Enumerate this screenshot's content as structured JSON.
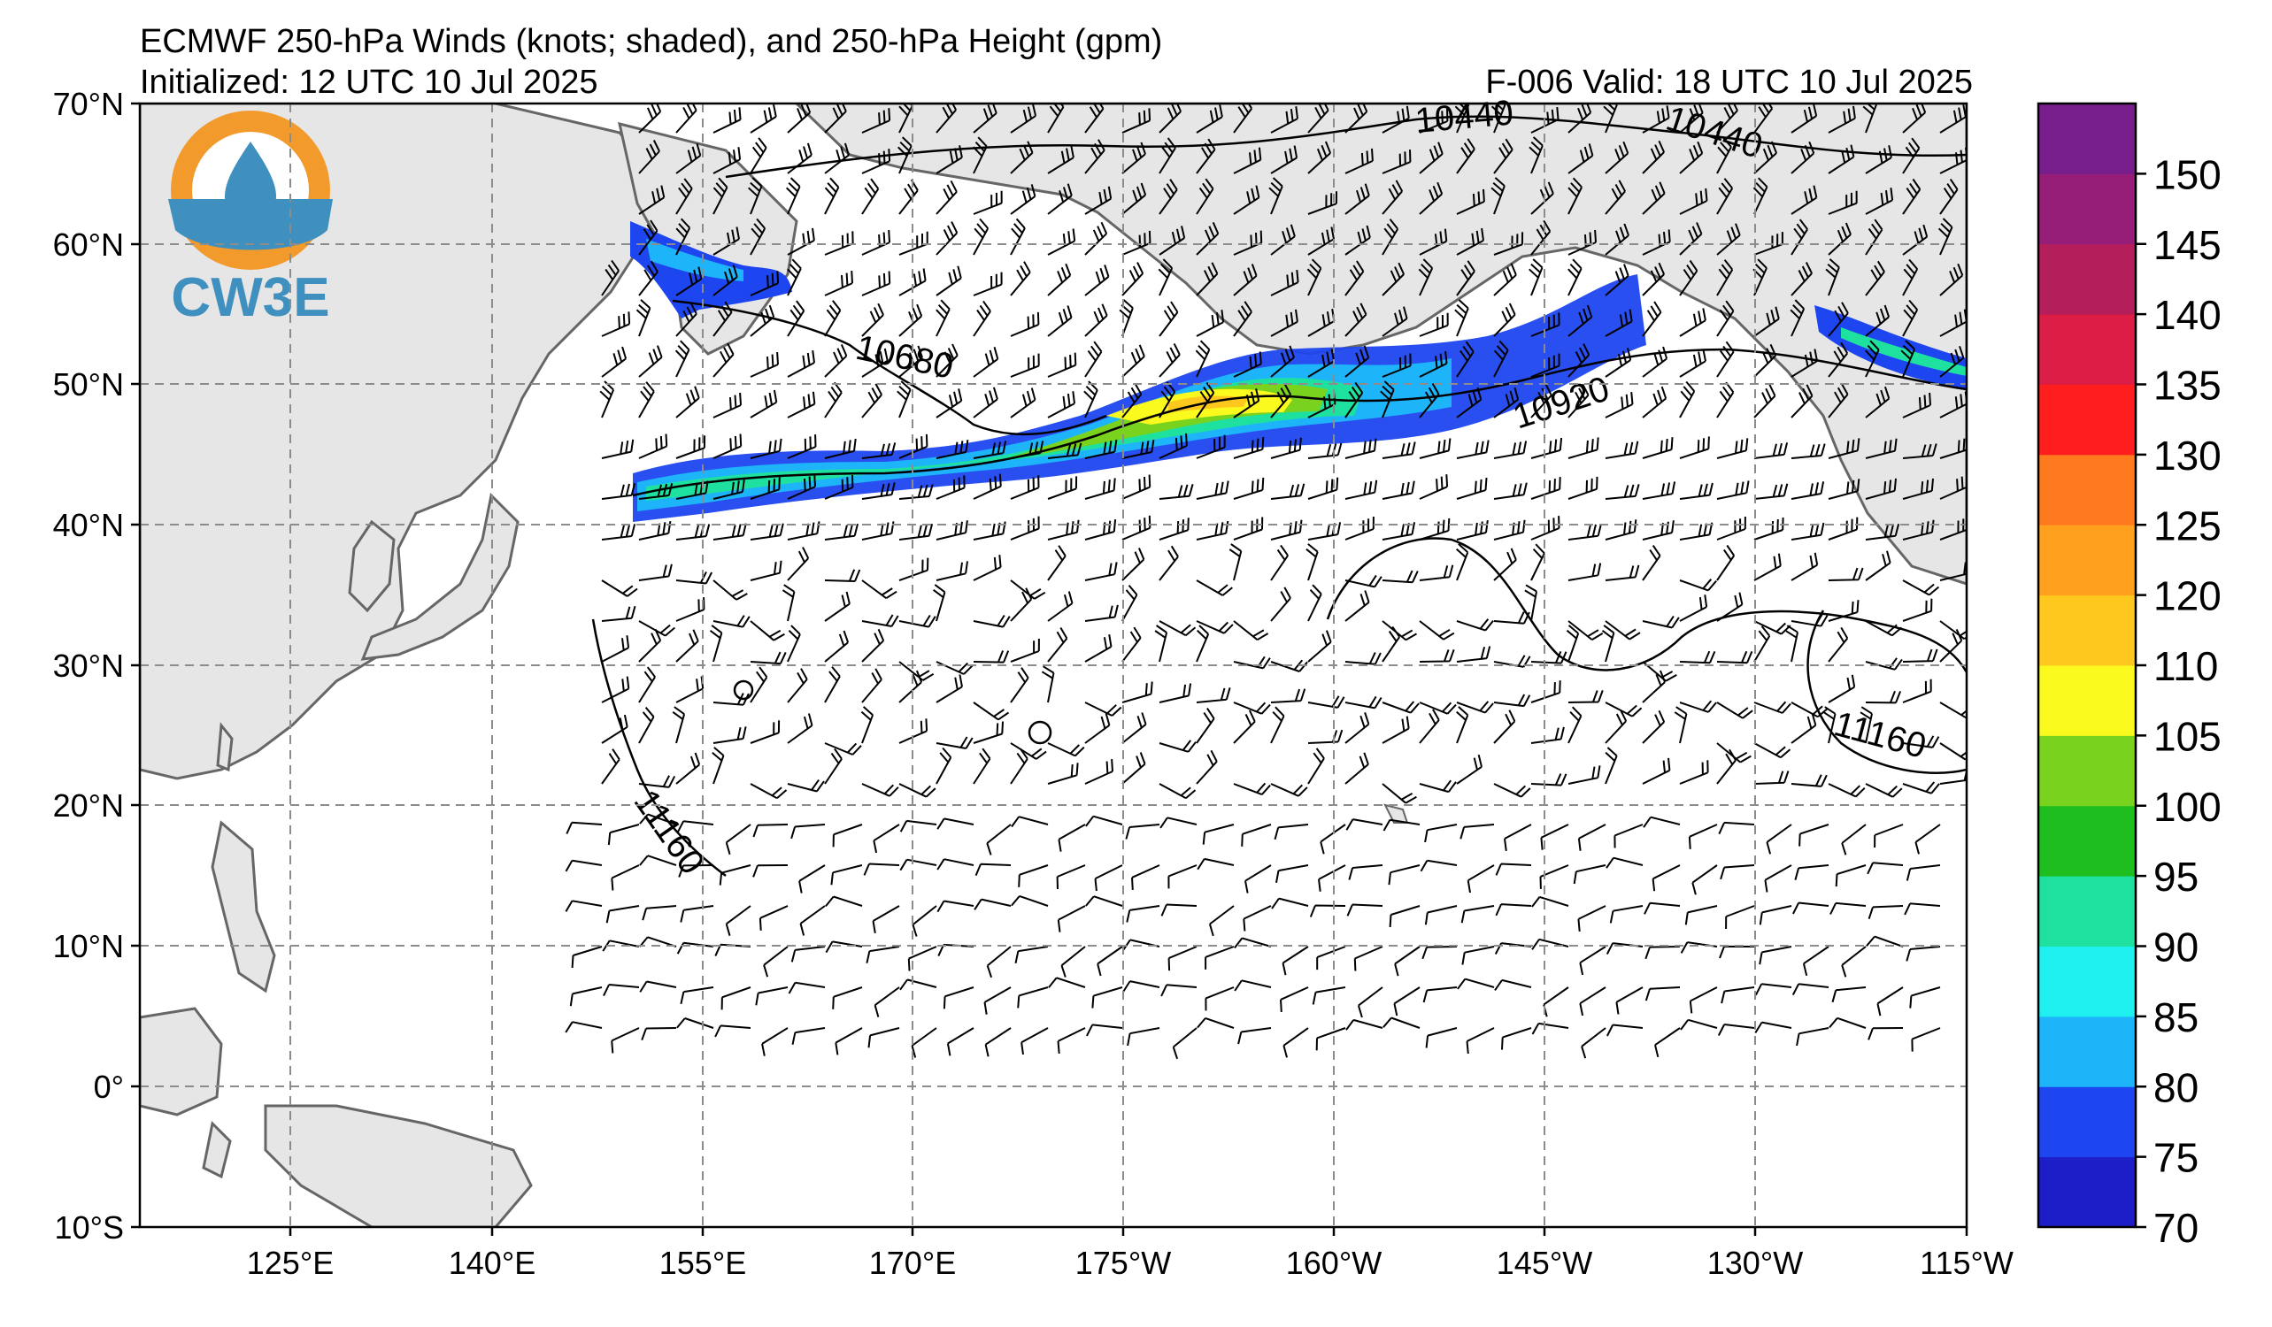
{
  "header": {
    "title": "ECMWF 250-hPa Winds (knots; shaded), and 250-hPa Height (gpm)",
    "initialized": "Initialized: 12 UTC 10 Jul 2025",
    "valid": "F-006  Valid: 18 UTC 10 Jul 2025"
  },
  "logo": {
    "text": "CW3E",
    "ring_color": "#F39A2C",
    "text_color": "#3F8FBF",
    "icon": "water-drop-lightning-icon"
  },
  "map": {
    "lat_labels": [
      "70°N",
      "60°N",
      "50°N",
      "40°N",
      "30°N",
      "20°N",
      "10°N",
      "0°",
      "10°S"
    ],
    "lon_labels": [
      "125°E",
      "140°E",
      "155°E",
      "170°E",
      "175°W",
      "160°W",
      "145°W",
      "130°W",
      "115°W"
    ],
    "contour_labels": [
      "10440",
      "10440",
      "10680",
      "10920",
      "11160",
      "11160"
    ],
    "land_color": "#e6e6e6",
    "coast_color": "#666666",
    "grid_color": "#8c8c8c"
  },
  "colorbar": {
    "ticks": [
      "70",
      "75",
      "80",
      "85",
      "90",
      "95",
      "100",
      "105",
      "110",
      "120",
      "125",
      "130",
      "135",
      "140",
      "145",
      "150"
    ],
    "colors": [
      "#1E1EC8",
      "#1E46F0",
      "#1EB4FA",
      "#1EF0F0",
      "#1EE1A0",
      "#1EBE1E",
      "#78D21E",
      "#FAFA1E",
      "#FFC81E",
      "#FFA01E",
      "#FF7A1E",
      "#FF1E1E",
      "#DC1E46",
      "#B41E5A",
      "#961E78",
      "#781E8C"
    ]
  }
}
